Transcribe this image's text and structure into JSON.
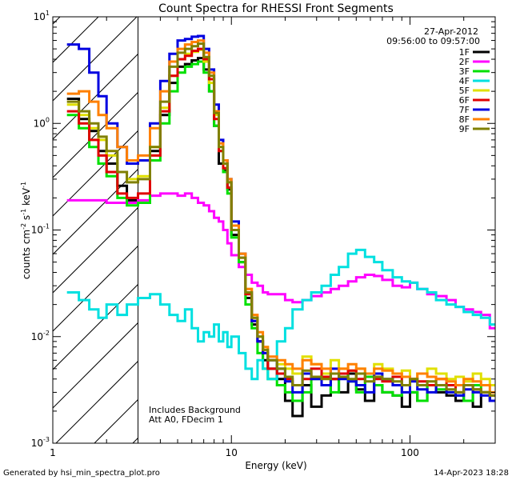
{
  "chart_data": {
    "type": "line",
    "title": "Count Spectra for RHESSI Front Segments",
    "xlabel": "Energy (keV)",
    "ylabel": {
      "base": "counts cm",
      "e1": "-2",
      "mid1": " s",
      "e2": "-1",
      "mid2": " keV",
      "e3": "-1"
    },
    "x_scale": "log",
    "y_scale": "log",
    "xlim": [
      1,
      300
    ],
    "ylim": [
      0.001,
      10
    ],
    "x_ticks": [
      {
        "v": 1,
        "label": "1"
      },
      {
        "v": 10,
        "label": "10"
      },
      {
        "v": 100,
        "label": "100"
      }
    ],
    "y_ticks": [
      {
        "v": 10,
        "base": "10",
        "exp": "1"
      },
      {
        "v": 1,
        "base": "10",
        "exp": "0"
      },
      {
        "v": 0.1,
        "base": "10",
        "exp": "-1"
      },
      {
        "v": 0.01,
        "base": "10",
        "exp": "-2"
      },
      {
        "v": 0.001,
        "base": "10",
        "exp": "-3"
      }
    ],
    "hatched_region_x": [
      1,
      3
    ],
    "date": "27-Apr-2012",
    "time_range": "09:56:00 to 09:57:00",
    "annotation_lines": [
      "Includes Background",
      "Att A0, FDecim 1"
    ],
    "bin_edges": [
      1.2,
      1.4,
      1.6,
      1.8,
      2.0,
      2.3,
      2.6,
      3.0,
      3.5,
      4.0,
      4.5,
      5.0,
      5.5,
      6.0,
      6.5,
      7.0,
      7.5,
      8.0,
      8.5,
      9.0,
      9.5,
      10,
      11,
      12,
      13,
      14,
      15,
      16,
      18,
      20,
      22,
      25,
      28,
      32,
      36,
      40,
      45,
      50,
      56,
      63,
      70,
      80,
      90,
      100,
      110,
      125,
      140,
      160,
      180,
      200,
      225,
      250,
      280,
      300
    ],
    "series": [
      {
        "name": "1F",
        "color": "#000000",
        "values": [
          1.7,
          1.1,
          0.85,
          0.55,
          0.42,
          0.26,
          0.19,
          0.18,
          0.55,
          1.2,
          2.4,
          3.4,
          3.6,
          3.9,
          4.1,
          3.2,
          2.0,
          0.95,
          0.42,
          0.36,
          0.24,
          0.09,
          0.05,
          0.023,
          0.013,
          0.009,
          0.006,
          0.005,
          0.004,
          0.0025,
          0.0018,
          0.0035,
          0.0022,
          0.0028,
          0.004,
          0.003,
          0.0045,
          0.0032,
          0.0025,
          0.0035,
          0.003,
          0.0028,
          0.0022,
          0.003,
          0.0025,
          0.0035,
          0.003,
          0.0028,
          0.0025,
          0.0035,
          0.0022,
          0.003,
          0.0025
        ]
      },
      {
        "name": "2F",
        "color": "#ff00ff",
        "values": [
          0.19,
          0.19,
          0.19,
          0.19,
          0.18,
          0.18,
          0.18,
          0.19,
          0.21,
          0.22,
          0.22,
          0.21,
          0.22,
          0.2,
          0.18,
          0.17,
          0.15,
          0.13,
          0.12,
          0.1,
          0.075,
          0.058,
          0.045,
          0.038,
          0.032,
          0.03,
          0.026,
          0.025,
          0.025,
          0.022,
          0.021,
          0.022,
          0.024,
          0.026,
          0.028,
          0.03,
          0.033,
          0.036,
          0.038,
          0.037,
          0.034,
          0.03,
          0.029,
          0.032,
          0.028,
          0.025,
          0.024,
          0.022,
          0.019,
          0.018,
          0.017,
          0.016,
          0.012
        ]
      },
      {
        "name": "3F",
        "color": "#00e000",
        "values": [
          1.2,
          0.9,
          0.6,
          0.42,
          0.32,
          0.2,
          0.17,
          0.18,
          0.45,
          1.0,
          2.0,
          3.0,
          3.4,
          3.6,
          3.8,
          3.0,
          2.0,
          0.95,
          0.55,
          0.35,
          0.22,
          0.085,
          0.05,
          0.02,
          0.012,
          0.007,
          0.005,
          0.004,
          0.0035,
          0.003,
          0.0025,
          0.003,
          0.004,
          0.0035,
          0.003,
          0.0045,
          0.0038,
          0.003,
          0.0042,
          0.0035,
          0.003,
          0.0028,
          0.0035,
          0.003,
          0.0025,
          0.0035,
          0.0032,
          0.003,
          0.0028,
          0.0025,
          0.0035,
          0.003,
          0.0028
        ]
      },
      {
        "name": "4F",
        "color": "#00e0e0",
        "values": [
          0.026,
          0.022,
          0.018,
          0.015,
          0.02,
          0.016,
          0.02,
          0.023,
          0.025,
          0.02,
          0.016,
          0.014,
          0.018,
          0.012,
          0.009,
          0.011,
          0.01,
          0.013,
          0.009,
          0.011,
          0.008,
          0.01,
          0.007,
          0.005,
          0.004,
          0.006,
          0.005,
          0.004,
          0.009,
          0.012,
          0.018,
          0.022,
          0.026,
          0.03,
          0.038,
          0.045,
          0.06,
          0.065,
          0.056,
          0.05,
          0.042,
          0.036,
          0.033,
          0.032,
          0.028,
          0.026,
          0.022,
          0.02,
          0.019,
          0.017,
          0.016,
          0.015,
          0.013
        ]
      },
      {
        "name": "5F",
        "color": "#e0e000",
        "values": [
          1.5,
          1.2,
          0.9,
          0.7,
          0.5,
          0.35,
          0.3,
          0.32,
          0.6,
          1.4,
          2.8,
          4.0,
          4.5,
          4.7,
          4.9,
          3.8,
          2.4,
          1.2,
          0.6,
          0.42,
          0.28,
          0.1,
          0.06,
          0.028,
          0.015,
          0.01,
          0.008,
          0.006,
          0.0055,
          0.005,
          0.0045,
          0.0065,
          0.0055,
          0.0045,
          0.006,
          0.005,
          0.0048,
          0.005,
          0.0045,
          0.0055,
          0.005,
          0.0045,
          0.0048,
          0.004,
          0.0045,
          0.005,
          0.0045,
          0.004,
          0.0042,
          0.0038,
          0.0045,
          0.004,
          0.0035
        ]
      },
      {
        "name": "6F",
        "color": "#e00000",
        "values": [
          1.3,
          1.0,
          0.7,
          0.5,
          0.35,
          0.22,
          0.2,
          0.22,
          0.5,
          1.3,
          2.8,
          4.0,
          4.3,
          4.8,
          5.0,
          4.0,
          2.6,
          1.1,
          0.55,
          0.38,
          0.25,
          0.1,
          0.055,
          0.025,
          0.014,
          0.009,
          0.007,
          0.005,
          0.0045,
          0.004,
          0.0035,
          0.004,
          0.005,
          0.0042,
          0.004,
          0.0045,
          0.0048,
          0.004,
          0.0045,
          0.004,
          0.0038,
          0.0042,
          0.0035,
          0.004,
          0.0038,
          0.0035,
          0.004,
          0.0035,
          0.003,
          0.0035,
          0.0032,
          0.003,
          0.0028
        ]
      },
      {
        "name": "7F",
        "color": "#0000e0",
        "values": [
          5.5,
          5.0,
          3.0,
          1.8,
          1.0,
          0.6,
          0.42,
          0.45,
          1.0,
          2.5,
          4.5,
          6.0,
          6.2,
          6.5,
          6.6,
          5.0,
          3.2,
          1.5,
          0.7,
          0.45,
          0.3,
          0.12,
          0.06,
          0.026,
          0.014,
          0.009,
          0.007,
          0.006,
          0.005,
          0.0038,
          0.003,
          0.0045,
          0.004,
          0.0035,
          0.005,
          0.004,
          0.0038,
          0.0035,
          0.003,
          0.0045,
          0.004,
          0.0035,
          0.003,
          0.0038,
          0.0032,
          0.003,
          0.0035,
          0.003,
          0.0028,
          0.0032,
          0.003,
          0.0028,
          0.0025
        ]
      },
      {
        "name": "8F",
        "color": "#ff8000",
        "values": [
          1.9,
          2.0,
          1.6,
          1.2,
          0.9,
          0.6,
          0.45,
          0.5,
          0.9,
          2.0,
          3.8,
          5.0,
          5.5,
          5.8,
          6.0,
          4.6,
          3.0,
          1.3,
          0.65,
          0.45,
          0.3,
          0.11,
          0.06,
          0.028,
          0.016,
          0.011,
          0.008,
          0.0065,
          0.006,
          0.0055,
          0.005,
          0.006,
          0.0055,
          0.005,
          0.0045,
          0.005,
          0.0055,
          0.005,
          0.0045,
          0.005,
          0.0048,
          0.0045,
          0.0042,
          0.004,
          0.0045,
          0.0042,
          0.004,
          0.0038,
          0.0035,
          0.004,
          0.0038,
          0.0035,
          0.003
        ]
      },
      {
        "name": "9F",
        "color": "#808000",
        "values": [
          1.6,
          1.3,
          1.0,
          0.75,
          0.55,
          0.35,
          0.28,
          0.3,
          0.6,
          1.6,
          3.4,
          4.6,
          5.0,
          5.3,
          5.6,
          4.2,
          2.8,
          1.25,
          0.6,
          0.42,
          0.28,
          0.1,
          0.055,
          0.026,
          0.015,
          0.01,
          0.0075,
          0.006,
          0.005,
          0.0042,
          0.0035,
          0.0048,
          0.0042,
          0.004,
          0.0045,
          0.0042,
          0.004,
          0.0045,
          0.0038,
          0.0042,
          0.004,
          0.0038,
          0.0035,
          0.004,
          0.0035,
          0.0038,
          0.0035,
          0.0032,
          0.003,
          0.0035,
          0.0032,
          0.003,
          0.0028
        ]
      }
    ]
  },
  "footer": {
    "left": "Generated by hsi_min_spectra_plot.pro",
    "right": "14-Apr-2023 18:28"
  }
}
